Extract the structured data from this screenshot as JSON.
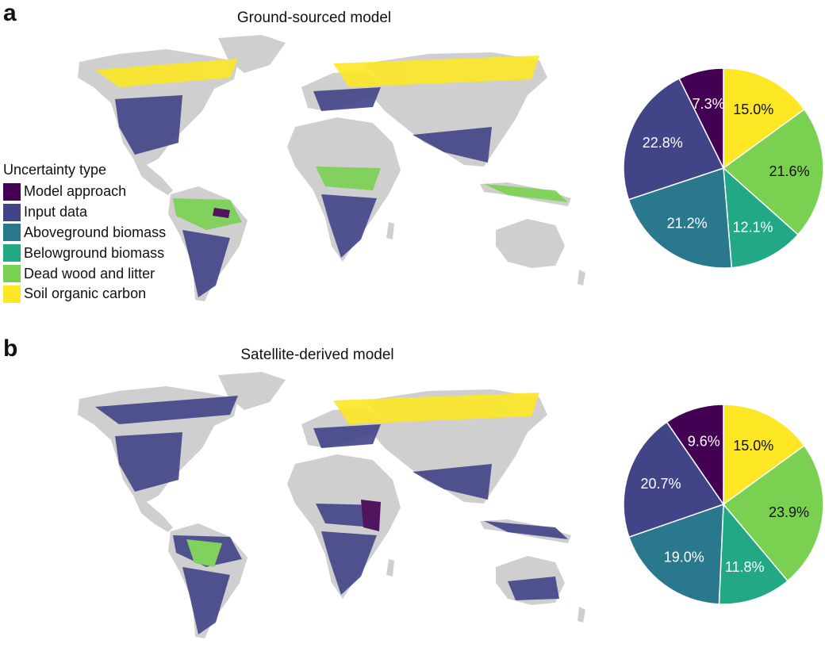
{
  "panels": [
    {
      "letter": "a",
      "title": "Ground-sourced model"
    },
    {
      "letter": "b",
      "title": "Satellite-derived model"
    }
  ],
  "legend": {
    "title": "Uncertainty type",
    "items": [
      {
        "label": "Model approach",
        "color": "#440154"
      },
      {
        "label": "Input data",
        "color": "#414487"
      },
      {
        "label": "Aboveground biomass",
        "color": "#2a788e"
      },
      {
        "label": "Belowground biomass",
        "color": "#22a884"
      },
      {
        "label": "Dead wood and litter",
        "color": "#7ad151"
      },
      {
        "label": "Soil organic carbon",
        "color": "#fde725"
      }
    ]
  },
  "colors": {
    "land": "#cfcfcf"
  },
  "chart_data": [
    {
      "type": "pie",
      "title": "Ground-sourced model",
      "categories": [
        "Soil organic carbon",
        "Dead wood and litter",
        "Belowground biomass",
        "Aboveground biomass",
        "Input data",
        "Model approach"
      ],
      "values": [
        15.0,
        21.6,
        12.1,
        21.2,
        22.8,
        7.3
      ],
      "labels": [
        "15.0%",
        "21.6%",
        "12.1%",
        "21.2%",
        "22.8%",
        "7.3%"
      ],
      "colors": [
        "#fde725",
        "#7ad151",
        "#22a884",
        "#2a788e",
        "#414487",
        "#440154"
      ],
      "label_colors": [
        "#111111",
        "#111111",
        "#ffffff",
        "#ffffff",
        "#ffffff",
        "#ffffff"
      ]
    },
    {
      "type": "pie",
      "title": "Satellite-derived model",
      "categories": [
        "Soil organic carbon",
        "Dead wood and litter",
        "Belowground biomass",
        "Aboveground biomass",
        "Input data",
        "Model approach"
      ],
      "values": [
        15.0,
        23.9,
        11.8,
        19.0,
        20.7,
        9.6
      ],
      "labels": [
        "15.0%",
        "23.9%",
        "11.8%",
        "19.0%",
        "20.7%",
        "9.6%"
      ],
      "colors": [
        "#fde725",
        "#7ad151",
        "#22a884",
        "#2a788e",
        "#414487",
        "#440154"
      ],
      "label_colors": [
        "#111111",
        "#111111",
        "#ffffff",
        "#ffffff",
        "#ffffff",
        "#ffffff"
      ]
    }
  ]
}
